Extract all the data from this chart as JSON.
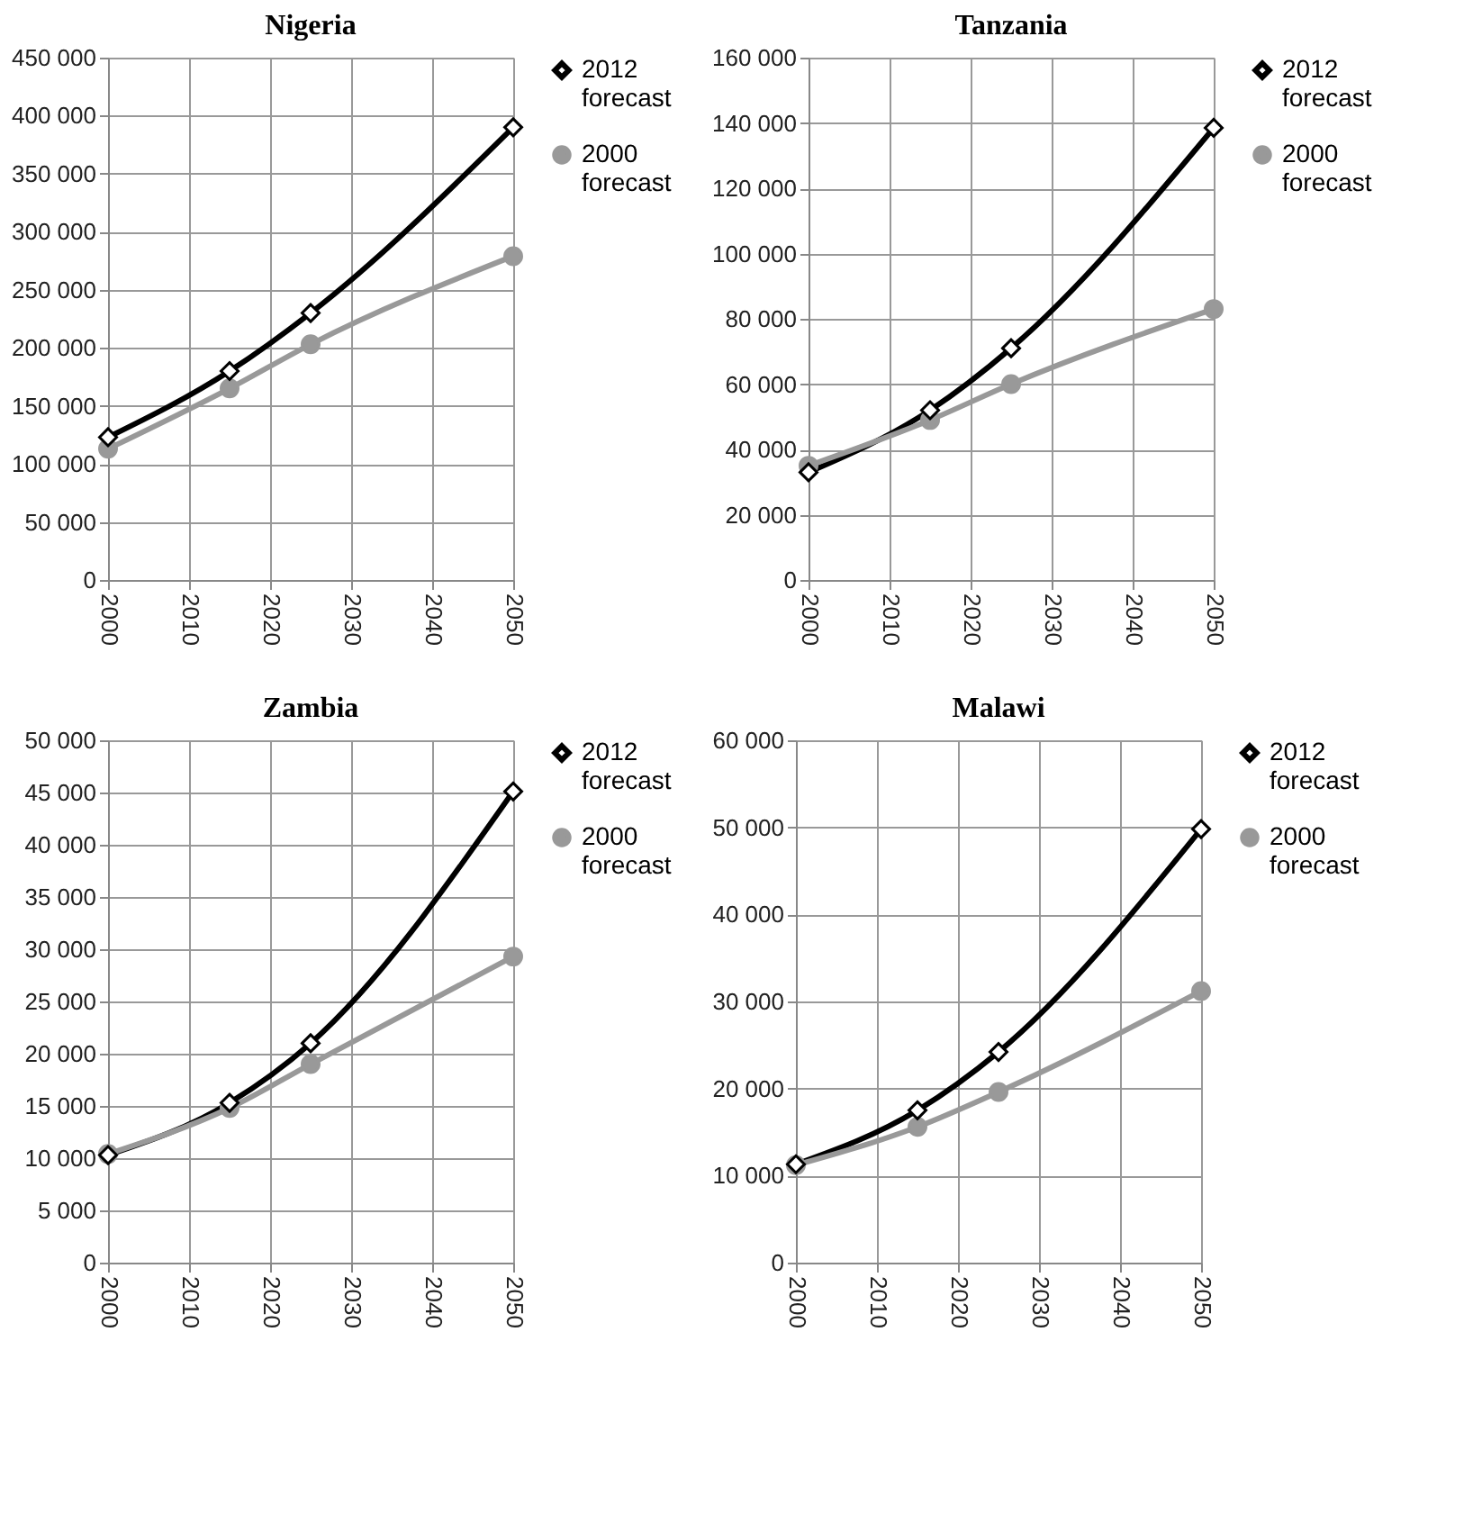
{
  "chart_data": [
    {
      "type": "line",
      "title": "Nigeria",
      "x": [
        2000,
        2015,
        2025,
        2050
      ],
      "xlim": [
        2000,
        2050
      ],
      "xticks": [
        2000,
        2010,
        2020,
        2030,
        2040,
        2050
      ],
      "ylim": [
        0,
        450000
      ],
      "yticks": [
        0,
        50000,
        100000,
        150000,
        200000,
        250000,
        300000,
        350000,
        400000,
        450000
      ],
      "grid": true,
      "legend": "right",
      "series": [
        {
          "name": "2012 forecast",
          "color": "#000000",
          "marker": "diamond",
          "values": [
            123000,
            180000,
            230000,
            390000
          ]
        },
        {
          "name": "2000 forecast",
          "color": "#999999",
          "marker": "circle",
          "values": [
            113000,
            165000,
            203000,
            279000
          ]
        }
      ]
    },
    {
      "type": "line",
      "title": "Tanzania",
      "x": [
        2000,
        2015,
        2025,
        2050
      ],
      "xlim": [
        2000,
        2050
      ],
      "xticks": [
        2000,
        2010,
        2020,
        2030,
        2040,
        2050
      ],
      "ylim": [
        0,
        160000
      ],
      "yticks": [
        0,
        20000,
        40000,
        60000,
        80000,
        100000,
        120000,
        140000,
        160000
      ],
      "grid": true,
      "legend": "right",
      "series": [
        {
          "name": "2012 forecast",
          "color": "#000000",
          "marker": "diamond",
          "values": [
            33000,
            52000,
            71000,
            138500
          ]
        },
        {
          "name": "2000 forecast",
          "color": "#999999",
          "marker": "circle",
          "values": [
            35000,
            49000,
            60000,
            83000
          ]
        }
      ]
    },
    {
      "type": "line",
      "title": "Zambia",
      "x": [
        2000,
        2015,
        2025,
        2050
      ],
      "xlim": [
        2000,
        2050
      ],
      "xticks": [
        2000,
        2010,
        2020,
        2030,
        2040,
        2050
      ],
      "ylim": [
        0,
        50000
      ],
      "yticks": [
        0,
        5000,
        10000,
        15000,
        20000,
        25000,
        30000,
        35000,
        40000,
        45000,
        50000
      ],
      "grid": true,
      "legend": "right",
      "series": [
        {
          "name": "2012 forecast",
          "color": "#000000",
          "marker": "diamond",
          "values": [
            10300,
            15300,
            21000,
            45100
          ]
        },
        {
          "name": "2000 forecast",
          "color": "#999999",
          "marker": "circle",
          "values": [
            10400,
            14800,
            19000,
            29300
          ]
        }
      ]
    },
    {
      "type": "line",
      "title": "Malawi",
      "x": [
        2000,
        2015,
        2025,
        2050
      ],
      "xlim": [
        2000,
        2050
      ],
      "xticks": [
        2000,
        2010,
        2020,
        2030,
        2040,
        2050
      ],
      "ylim": [
        0,
        60000
      ],
      "yticks": [
        0,
        10000,
        20000,
        30000,
        40000,
        50000,
        60000
      ],
      "grid": true,
      "legend": "right",
      "series": [
        {
          "name": "2012 forecast",
          "color": "#000000",
          "marker": "diamond",
          "values": [
            11300,
            17500,
            24200,
            49800
          ]
        },
        {
          "name": "2000 forecast",
          "color": "#999999",
          "marker": "circle",
          "values": [
            11200,
            15600,
            19600,
            31200
          ]
        }
      ]
    }
  ]
}
